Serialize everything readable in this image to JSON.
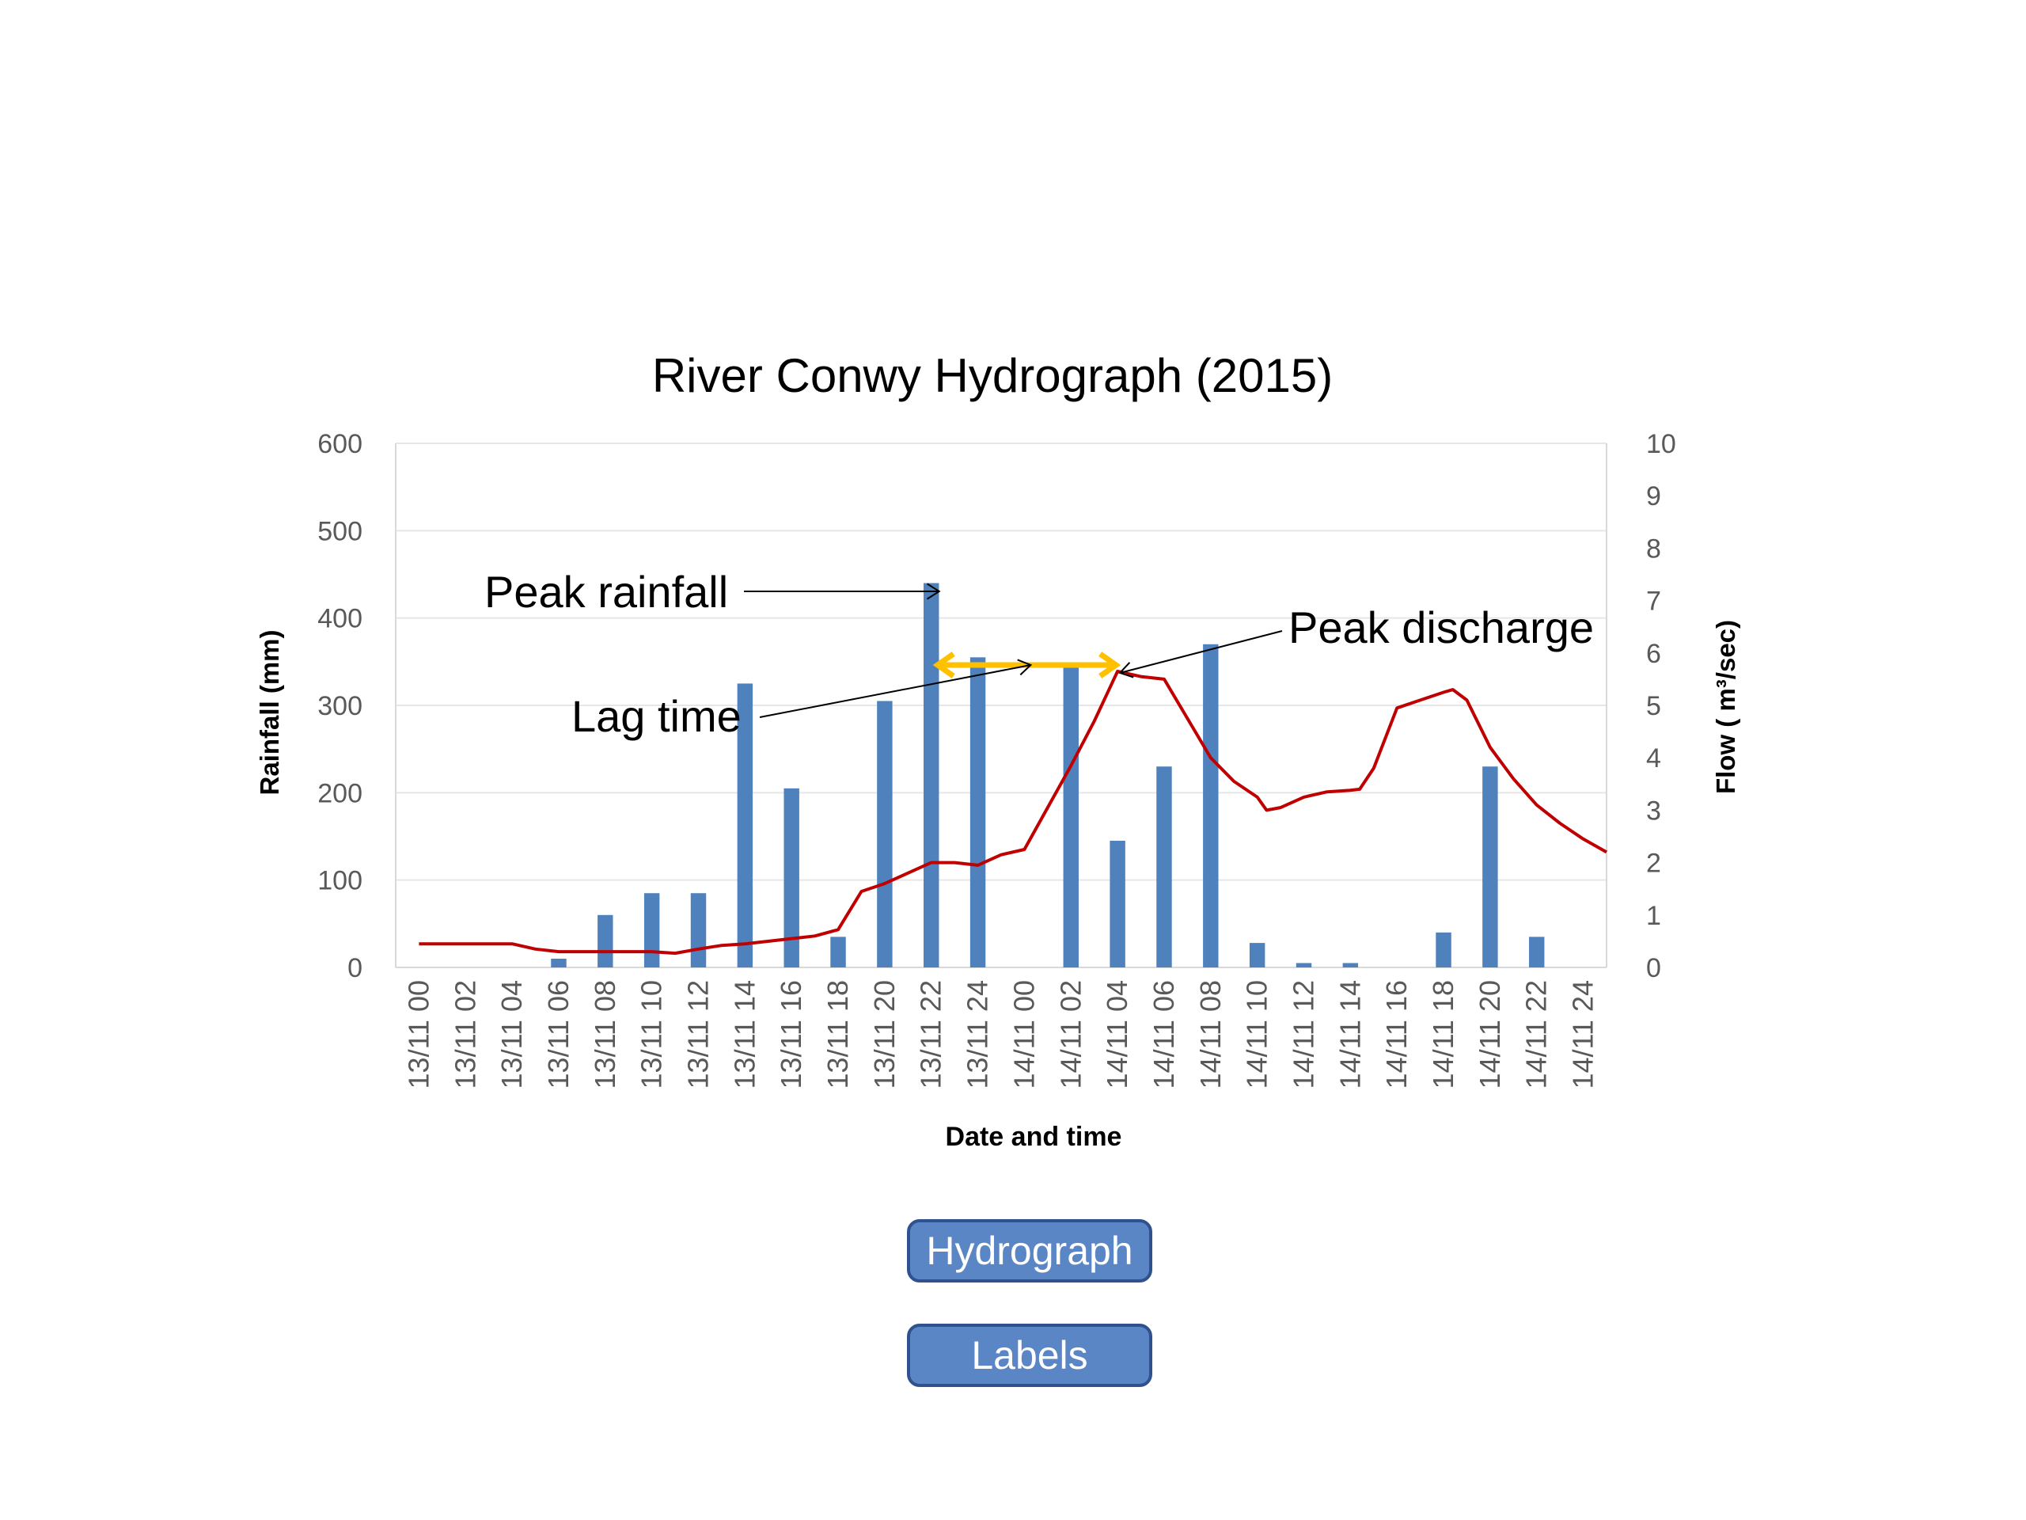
{
  "chart_data": {
    "type": "bar+line",
    "title": "River Conwy Hydrograph (2015)",
    "xlabel": "Date and time",
    "ylabel_left": "Rainfall (mm)",
    "ylabel_right": "Flow ( m³/sec)",
    "ylim_left": [
      0,
      600
    ],
    "ylim_right": [
      0,
      10
    ],
    "yticks_left": [
      "0",
      "100",
      "200",
      "300",
      "400",
      "500",
      "600"
    ],
    "yticks_right": [
      "0",
      "1",
      "2",
      "3",
      "4",
      "5",
      "6",
      "7",
      "8",
      "9",
      "10"
    ],
    "grid": true,
    "categories": [
      "13/11 00",
      "13/11 02",
      "13/11 04",
      "13/11 06",
      "13/11 08",
      "13/11 10",
      "13/11 12",
      "13/11 14",
      "13/11 16",
      "13/11 18",
      "13/11 20",
      "13/11 22",
      "13/11 24",
      "14/11 00",
      "14/11 02",
      "14/11 04",
      "14/11 06",
      "14/11 08",
      "14/11 10",
      "14/11 12",
      "14/11 14",
      "14/11 16",
      "14/11 18",
      "14/11 20",
      "14/11 22",
      "14/11 24"
    ],
    "rainfall": [
      0,
      0,
      0,
      10,
      60,
      85,
      85,
      325,
      205,
      35,
      305,
      440,
      355,
      0,
      345,
      145,
      230,
      370,
      28,
      5,
      5,
      0,
      40,
      230,
      35,
      0
    ],
    "rainfall_color": "#4f81bd",
    "flow_color": "#c00000",
    "flow": [
      [
        0,
        0.45
      ],
      [
        1,
        0.45
      ],
      [
        2,
        0.45
      ],
      [
        2.5,
        0.35
      ],
      [
        3,
        0.3
      ],
      [
        4,
        0.3
      ],
      [
        5,
        0.3
      ],
      [
        5.5,
        0.27
      ],
      [
        6,
        0.35
      ],
      [
        6.5,
        0.42
      ],
      [
        7,
        0.45
      ],
      [
        8,
        0.55
      ],
      [
        8.5,
        0.6
      ],
      [
        9,
        0.72
      ],
      [
        9.5,
        1.45
      ],
      [
        10,
        1.6
      ],
      [
        10.5,
        1.8
      ],
      [
        11,
        2.0
      ],
      [
        11.5,
        2.0
      ],
      [
        12,
        1.95
      ],
      [
        12.5,
        2.15
      ],
      [
        13,
        2.25
      ],
      [
        13.5,
        3.05
      ],
      [
        14,
        3.85
      ],
      [
        14.5,
        4.7
      ],
      [
        15,
        5.65
      ],
      [
        15.5,
        5.55
      ],
      [
        16,
        5.5
      ],
      [
        16.5,
        4.75
      ],
      [
        17,
        4.0
      ],
      [
        17.5,
        3.55
      ],
      [
        18,
        3.25
      ],
      [
        18.2,
        3.0
      ],
      [
        18.5,
        3.05
      ],
      [
        19,
        3.25
      ],
      [
        19.5,
        3.35
      ],
      [
        20,
        3.38
      ],
      [
        20.2,
        3.4
      ],
      [
        20.5,
        3.8
      ],
      [
        21,
        4.95
      ],
      [
        21.5,
        5.1
      ],
      [
        22,
        5.25
      ],
      [
        22.2,
        5.3
      ],
      [
        22.5,
        5.1
      ],
      [
        23,
        4.2
      ],
      [
        23.5,
        3.6
      ],
      [
        24,
        3.1
      ],
      [
        24.5,
        2.75
      ],
      [
        25,
        2.45
      ],
      [
        25.5,
        2.2
      ]
    ],
    "annotations": {
      "peak_rainfall": "Peak rainfall",
      "lag_time": "Lag time",
      "peak_discharge": "Peak discharge",
      "lag_color": "#ffc000"
    }
  },
  "buttons": {
    "hydrograph": "Hydrograph",
    "labels": "Labels"
  }
}
